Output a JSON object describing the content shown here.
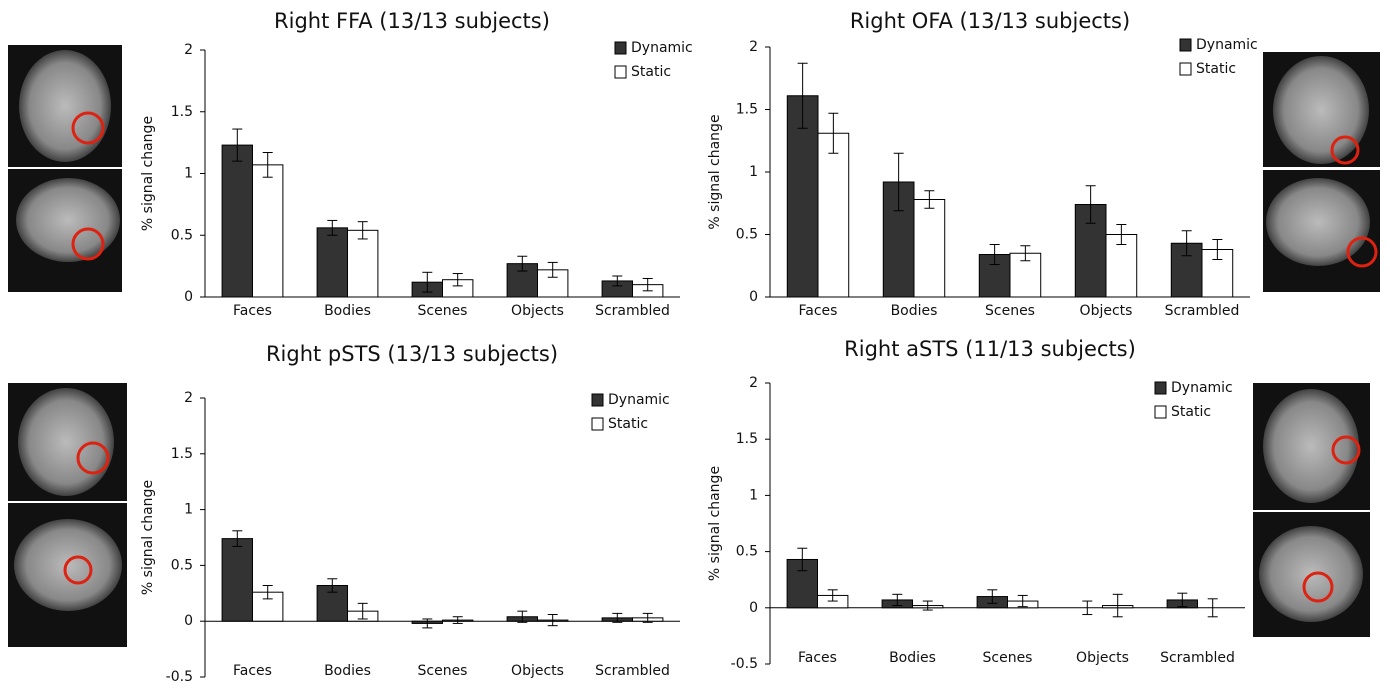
{
  "chart_data": [
    {
      "type": "bar",
      "title": "Right FFA (13/13 subjects)",
      "ylabel": "% signal change",
      "categories": [
        "Faces",
        "Bodies",
        "Scenes",
        "Objects",
        "Scrambled"
      ],
      "series": [
        {
          "name": "Dynamic",
          "color": "#333333",
          "values": [
            1.23,
            0.56,
            0.12,
            0.27,
            0.13
          ],
          "errors": [
            0.13,
            0.06,
            0.08,
            0.06,
            0.04
          ]
        },
        {
          "name": "Static",
          "color": "#ffffff",
          "values": [
            1.07,
            0.54,
            0.14,
            0.22,
            0.1
          ],
          "errors": [
            0.1,
            0.07,
            0.05,
            0.06,
            0.05
          ]
        }
      ],
      "ylim": [
        0,
        2
      ],
      "yticks": [
        0,
        0.5,
        1,
        1.5,
        2
      ],
      "grid": false,
      "legend": "upper-right"
    },
    {
      "type": "bar",
      "title": "Right OFA (13/13 subjects)",
      "ylabel": "% signal change",
      "categories": [
        "Faces",
        "Bodies",
        "Scenes",
        "Objects",
        "Scrambled"
      ],
      "series": [
        {
          "name": "Dynamic",
          "color": "#333333",
          "values": [
            1.61,
            0.92,
            0.34,
            0.74,
            0.43
          ],
          "errors": [
            0.26,
            0.23,
            0.08,
            0.15,
            0.1
          ]
        },
        {
          "name": "Static",
          "color": "#ffffff",
          "values": [
            1.31,
            0.78,
            0.35,
            0.5,
            0.38
          ],
          "errors": [
            0.16,
            0.07,
            0.06,
            0.08,
            0.08
          ]
        }
      ],
      "ylim": [
        0,
        2
      ],
      "yticks": [
        0,
        0.5,
        1,
        1.5,
        2
      ],
      "grid": false,
      "legend": "upper-right"
    },
    {
      "type": "bar",
      "title": "Right pSTS (13/13 subjects)",
      "ylabel": "% signal change",
      "categories": [
        "Faces",
        "Bodies",
        "Scenes",
        "Objects",
        "Scrambled"
      ],
      "series": [
        {
          "name": "Dynamic",
          "color": "#333333",
          "values": [
            0.74,
            0.32,
            -0.02,
            0.04,
            0.03
          ],
          "errors": [
            0.07,
            0.06,
            0.04,
            0.05,
            0.04
          ]
        },
        {
          "name": "Static",
          "color": "#ffffff",
          "values": [
            0.26,
            0.09,
            0.01,
            0.01,
            0.03
          ],
          "errors": [
            0.06,
            0.07,
            0.03,
            0.05,
            0.04
          ]
        }
      ],
      "ylim": [
        -0.5,
        2
      ],
      "yticks": [
        -0.5,
        0,
        0.5,
        1,
        1.5,
        2
      ],
      "grid": false,
      "legend": "upper-right"
    },
    {
      "type": "bar",
      "title": "Right aSTS (11/13 subjects)",
      "ylabel": "% signal change",
      "categories": [
        "Faces",
        "Bodies",
        "Scenes",
        "Objects",
        "Scrambled"
      ],
      "series": [
        {
          "name": "Dynamic",
          "color": "#333333",
          "values": [
            0.43,
            0.07,
            0.1,
            0.0,
            0.07
          ],
          "errors": [
            0.1,
            0.05,
            0.06,
            0.06,
            0.06
          ]
        },
        {
          "name": "Static",
          "color": "#ffffff",
          "values": [
            0.11,
            0.02,
            0.06,
            0.02,
            0.0
          ],
          "errors": [
            0.05,
            0.04,
            0.05,
            0.1,
            0.08
          ]
        }
      ],
      "ylim": [
        -0.5,
        2
      ],
      "yticks": [
        -0.5,
        0,
        0.5,
        1,
        1.5,
        2
      ],
      "grid": false,
      "legend": "upper-right"
    }
  ]
}
